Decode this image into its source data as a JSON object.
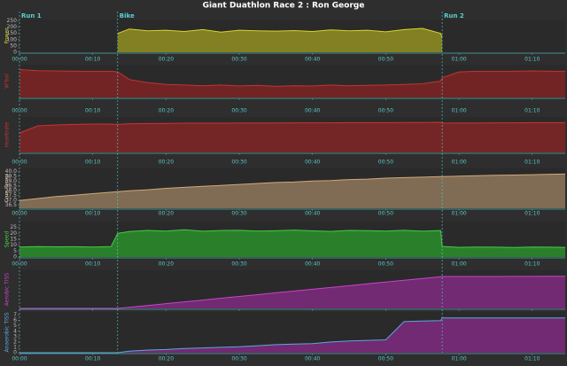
{
  "title": "Giant Duathlon Race 2 : Ron George",
  "chart_data": [
    {
      "type": "line",
      "y_label": "Power",
      "color": "#d8d42c",
      "fill": "#8c8a22",
      "x": [
        0,
        2.5,
        5,
        7.5,
        10,
        12.5,
        13.4,
        15,
        17.5,
        20,
        22.5,
        25,
        27.5,
        30,
        32.5,
        35,
        37.5,
        40,
        42.5,
        45,
        47.5,
        50,
        52.5,
        55,
        57.5,
        57.7,
        60,
        62.5,
        65,
        67.5,
        70,
        72.5,
        74.5
      ],
      "values": [
        null,
        null,
        null,
        null,
        null,
        null,
        150,
        185,
        170,
        175,
        165,
        180,
        160,
        175,
        170,
        168,
        172,
        165,
        178,
        170,
        175,
        162,
        180,
        190,
        150,
        120,
        null,
        null,
        null,
        null,
        null,
        null,
        null
      ],
      "xlim": [
        0,
        74.5
      ],
      "xticks": [
        {
          "value": 0,
          "label": "00:00"
        },
        {
          "value": 10,
          "label": "00:10"
        },
        {
          "value": 20,
          "label": "00:20"
        },
        {
          "value": 30,
          "label": "00:30"
        },
        {
          "value": 40,
          "label": "00:40"
        },
        {
          "value": 50,
          "label": "00:50"
        },
        {
          "value": 60,
          "label": "01:00"
        },
        {
          "value": 70,
          "label": "01:10"
        }
      ],
      "ylim": [
        0,
        260
      ],
      "yticks": [
        0,
        50,
        100,
        150,
        200,
        250
      ],
      "annotations": [
        {
          "label": "Run 1",
          "x": 0
        },
        {
          "label": "Bike",
          "x": 13.4
        },
        {
          "label": "Run 2",
          "x": 57.7
        }
      ]
    },
    {
      "type": "line",
      "y_label": "W'bal",
      "color": "#c03434",
      "fill": "#7a2424",
      "x": [
        0,
        2.5,
        5,
        7.5,
        10,
        12.5,
        13.4,
        15,
        17.5,
        20,
        22.5,
        25,
        27.5,
        30,
        32.5,
        35,
        37.5,
        40,
        42.5,
        45,
        47.5,
        50,
        52.5,
        55,
        57.5,
        57.7,
        60,
        62.5,
        65,
        67.5,
        70,
        72.5,
        74.5
      ],
      "values": [
        85,
        82,
        81,
        80,
        80,
        80,
        78,
        55,
        45,
        40,
        38,
        36,
        38,
        35,
        37,
        34,
        36,
        35,
        38,
        36,
        37,
        38,
        40,
        42,
        50,
        60,
        78,
        80,
        80,
        80,
        81,
        80,
        80
      ],
      "xlim": [
        0,
        74.5
      ],
      "xticks": [
        {
          "value": 0,
          "label": "00:00"
        },
        {
          "value": 10,
          "label": "00:10"
        },
        {
          "value": 20,
          "label": "00:20"
        },
        {
          "value": 30,
          "label": "00:30"
        },
        {
          "value": 40,
          "label": "00:40"
        },
        {
          "value": 50,
          "label": "00:50"
        },
        {
          "value": 60,
          "label": "01:00"
        },
        {
          "value": 70,
          "label": "01:10"
        }
      ],
      "ylim": [
        0,
        100
      ]
    },
    {
      "type": "line",
      "y_label": "Heartrate",
      "color": "#c83434",
      "fill": "#7c2626",
      "x": [
        0,
        2.5,
        5,
        7.5,
        10,
        12.5,
        13.4,
        15,
        17.5,
        20,
        22.5,
        25,
        27.5,
        30,
        32.5,
        35,
        37.5,
        40,
        42.5,
        45,
        47.5,
        50,
        52.5,
        55,
        57.5,
        57.7,
        60,
        62.5,
        65,
        67.5,
        70,
        72.5,
        74.5
      ],
      "values": [
        110,
        150,
        155,
        158,
        160,
        160,
        158,
        162,
        163,
        164,
        165,
        165,
        165,
        166,
        166,
        166,
        167,
        167,
        167,
        168,
        168,
        168,
        169,
        169,
        170,
        165,
        166,
        166,
        167,
        167,
        168,
        168,
        168
      ],
      "xlim": [
        0,
        74.5
      ],
      "xticks": [
        {
          "value": 0,
          "label": "00:00"
        },
        {
          "value": 10,
          "label": "00:10"
        },
        {
          "value": 20,
          "label": "00:20"
        },
        {
          "value": 30,
          "label": "00:30"
        },
        {
          "value": 40,
          "label": "00:40"
        },
        {
          "value": 50,
          "label": "00:50"
        },
        {
          "value": 60,
          "label": "01:00"
        },
        {
          "value": 70,
          "label": "01:10"
        }
      ],
      "ylim": [
        0,
        200
      ]
    },
    {
      "type": "line",
      "y_label": "Core Temp",
      "color": "#d0a878",
      "fill": "#8a725a",
      "x": [
        0,
        2.5,
        5,
        7.5,
        10,
        12.5,
        13.4,
        15,
        17.5,
        20,
        22.5,
        25,
        27.5,
        30,
        32.5,
        35,
        37.5,
        40,
        42.5,
        45,
        47.5,
        50,
        52.5,
        55,
        57.5,
        57.7,
        60,
        62.5,
        65,
        67.5,
        70,
        72.5,
        74.5
      ],
      "values": [
        37.0,
        37.2,
        37.4,
        37.55,
        37.7,
        37.85,
        37.9,
        38.0,
        38.1,
        38.25,
        38.35,
        38.45,
        38.55,
        38.65,
        38.75,
        38.85,
        38.9,
        39.0,
        39.05,
        39.15,
        39.2,
        39.3,
        39.35,
        39.4,
        39.45,
        39.45,
        39.5,
        39.55,
        39.6,
        39.62,
        39.65,
        39.7,
        39.72
      ],
      "xlim": [
        0,
        74.5
      ],
      "xticks": [
        {
          "value": 0,
          "label": "00:00"
        },
        {
          "value": 10,
          "label": "00:10"
        },
        {
          "value": 20,
          "label": "00:20"
        },
        {
          "value": 30,
          "label": "00:30"
        },
        {
          "value": 40,
          "label": "00:40"
        },
        {
          "value": 50,
          "label": "00:50"
        },
        {
          "value": 60,
          "label": "01:00"
        },
        {
          "value": 70,
          "label": "01:10"
        }
      ],
      "ylim": [
        36.2,
        40.3
      ],
      "yticks": [
        36.5,
        {
          "value": 37,
          "label": "37.0"
        },
        37.5,
        {
          "value": 38,
          "label": "38.0"
        },
        38.5,
        {
          "value": 39,
          "label": "39.0"
        },
        39.5,
        {
          "value": 40,
          "label": "40.0"
        }
      ]
    },
    {
      "type": "line",
      "y_label": "Speed",
      "color": "#44cc44",
      "fill": "#2a8a2a",
      "x": [
        0,
        2.5,
        5,
        7.5,
        10,
        12.5,
        13.4,
        15,
        17.5,
        20,
        22.5,
        25,
        27.5,
        30,
        32.5,
        35,
        37.5,
        40,
        42.5,
        45,
        47.5,
        50,
        52.5,
        55,
        57.5,
        57.7,
        60,
        62.5,
        65,
        67.5,
        70,
        72.5,
        74.5
      ],
      "values": [
        8.5,
        8.8,
        8.6,
        8.7,
        8.5,
        8.8,
        20,
        21.5,
        22.5,
        22,
        23,
        21.8,
        22.4,
        22.6,
        21.9,
        22.2,
        22.8,
        22.1,
        21.7,
        22.5,
        22.3,
        22,
        22.6,
        21.8,
        22.4,
        9,
        8.2,
        8.4,
        8.3,
        8.1,
        8.5,
        8.3,
        8.2
      ],
      "xlim": [
        0,
        74.5
      ],
      "xticks": [
        {
          "value": 0,
          "label": "00:00"
        },
        {
          "value": 10,
          "label": "00:10"
        },
        {
          "value": 20,
          "label": "00:20"
        },
        {
          "value": 30,
          "label": "00:30"
        },
        {
          "value": 40,
          "label": "00:40"
        },
        {
          "value": 50,
          "label": "00:50"
        },
        {
          "value": 60,
          "label": "01:00"
        },
        {
          "value": 70,
          "label": "01:10"
        }
      ],
      "ylim": [
        0,
        30
      ],
      "yticks": [
        0,
        5,
        10,
        15,
        20,
        25
      ]
    },
    {
      "type": "line",
      "y_label": "Aerobic TISS",
      "color": "#c844c8",
      "fill": "#7a2a7a",
      "x": [
        0,
        2.5,
        5,
        7.5,
        10,
        12.5,
        13.4,
        15,
        17.5,
        20,
        22.5,
        25,
        27.5,
        30,
        32.5,
        35,
        37.5,
        40,
        42.5,
        45,
        47.5,
        50,
        52.5,
        55,
        57.5,
        57.7,
        60,
        62.5,
        65,
        67.5,
        70,
        72.5,
        74.5
      ],
      "values": [
        0,
        0,
        0,
        0,
        0,
        0,
        0,
        3.3,
        8.5,
        13.7,
        18.9,
        24.1,
        29.3,
        34.5,
        39.7,
        44.9,
        50.1,
        55.2,
        60.4,
        65.6,
        70.8,
        76,
        81.2,
        86.4,
        91.6,
        92,
        92,
        92,
        92.2,
        92.3,
        92.4,
        92.5,
        92.5
      ],
      "xlim": [
        0,
        74.5
      ],
      "xticks": [
        {
          "value": 0,
          "label": "00:00"
        },
        {
          "value": 10,
          "label": "00:10"
        },
        {
          "value": 20,
          "label": "00:20"
        },
        {
          "value": 30,
          "label": "00:30"
        },
        {
          "value": 40,
          "label": "00:40"
        },
        {
          "value": 50,
          "label": "00:50"
        },
        {
          "value": 60,
          "label": "01:00"
        },
        {
          "value": 70,
          "label": "01:10"
        }
      ],
      "ylim": [
        0,
        110
      ]
    },
    {
      "type": "line",
      "y_label": "Anaerobic TISS",
      "color": "#5aa8e0",
      "fill": "#7a2a7a",
      "x": [
        0,
        2.5,
        5,
        7.5,
        10,
        12.5,
        13.4,
        15,
        17.5,
        20,
        22.5,
        25,
        27.5,
        30,
        32.5,
        35,
        37.5,
        40,
        42.5,
        45,
        47.5,
        50,
        52.5,
        55,
        57.5,
        57.7,
        60,
        62.5,
        65,
        67.5,
        70,
        72.5,
        74.5
      ],
      "values": [
        0,
        0,
        0,
        0,
        0,
        0,
        0,
        0.3,
        0.5,
        0.6,
        0.8,
        0.9,
        1.0,
        1.1,
        1.3,
        1.5,
        1.6,
        1.7,
        2.0,
        2.2,
        2.3,
        2.4,
        5.8,
        5.9,
        6.0,
        6.5,
        6.5,
        6.5,
        6.5,
        6.5,
        6.5,
        6.5,
        6.5
      ],
      "xlim": [
        0,
        74.5
      ],
      "xticks": [
        {
          "value": 0,
          "label": "00:00"
        },
        {
          "value": 10,
          "label": "00:10"
        },
        {
          "value": 20,
          "label": "00:20"
        },
        {
          "value": 30,
          "label": "00:30"
        },
        {
          "value": 40,
          "label": "00:40"
        },
        {
          "value": 50,
          "label": "00:50"
        },
        {
          "value": 60,
          "label": "01:00"
        },
        {
          "value": 70,
          "label": "01:10"
        }
      ],
      "ylim": [
        0,
        7.6
      ],
      "yticks": [
        0,
        1,
        2,
        3,
        4,
        5,
        6,
        7
      ]
    }
  ]
}
